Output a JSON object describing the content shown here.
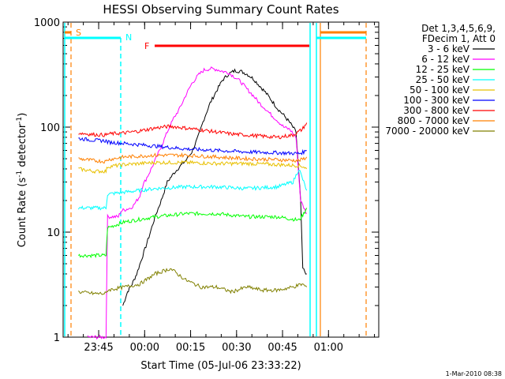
{
  "chart_data": {
    "type": "line",
    "title": "HESSI Observing Summary Count Rates",
    "xlabel": "Start Time (05-Jul-06 23:33:22)",
    "ylabel_main": "Count Rate (s",
    "ylabel_sup": "-1",
    "ylabel_mid": " detector",
    "ylabel_sup2": "-1",
    "ylabel_end": ")",
    "footer": "1-Mar-2010 08:38",
    "x_unit": "minutes after 23:33:22",
    "xlim": [
      0,
      103
    ],
    "ylim": [
      1,
      1000
    ],
    "yscale": "log",
    "x_ticks": [
      {
        "value": 11.6,
        "label": "23:45"
      },
      {
        "value": 26.6,
        "label": "00:00"
      },
      {
        "value": 41.6,
        "label": "00:15"
      },
      {
        "value": 56.6,
        "label": "00:30"
      },
      {
        "value": 71.6,
        "label": "00:45"
      },
      {
        "value": 86.6,
        "label": "01:00"
      }
    ],
    "y_ticks": [
      {
        "value": 1,
        "label": "1"
      },
      {
        "value": 10,
        "label": "10"
      },
      {
        "value": 100,
        "label": "100"
      },
      {
        "value": 1000,
        "label": "1000"
      }
    ],
    "legend_header": [
      "Det 1,3,4,5,6,9,",
      "FDecim 1, Att 0"
    ],
    "series": [
      {
        "name": "3 - 6 keV",
        "color": "#000000",
        "x": [
          19.5,
          21,
          22.5,
          24,
          26,
          28,
          30,
          32,
          34,
          36,
          38,
          40,
          42,
          44,
          46,
          48,
          50,
          52,
          54,
          56,
          58,
          60,
          62,
          64,
          66,
          68,
          70,
          72,
          74,
          76,
          77.5,
          78.2,
          79.5
        ],
        "y": [
          2,
          2.7,
          3.2,
          4,
          6,
          9,
          14,
          20,
          30,
          36,
          42,
          48,
          58,
          80,
          120,
          170,
          220,
          280,
          320,
          345,
          340,
          320,
          290,
          250,
          215,
          180,
          150,
          130,
          110,
          90,
          20,
          4.5,
          4
        ]
      },
      {
        "name": "6 - 12 keV",
        "color": "#ff00ff",
        "x": [
          8,
          11,
          14,
          14.5,
          18,
          19,
          22,
          23,
          25,
          26,
          28,
          30,
          32,
          34,
          36,
          38,
          40,
          42,
          44,
          46,
          48,
          50,
          52,
          54,
          56,
          58,
          60,
          62,
          64,
          66,
          68,
          70,
          72,
          74,
          76,
          77.5,
          78.2,
          79.5
        ],
        "y": [
          1,
          1,
          1,
          14,
          14,
          16,
          17,
          18,
          22,
          28,
          36,
          48,
          65,
          90,
          120,
          150,
          200,
          260,
          310,
          350,
          360,
          355,
          340,
          330,
          300,
          270,
          230,
          200,
          170,
          150,
          130,
          115,
          100,
          95,
          80,
          20,
          18,
          15
        ]
      },
      {
        "name": "12 - 25 keV",
        "color": "#00ff00",
        "x": [
          5,
          10,
          14,
          14.5,
          20,
          30,
          40,
          50,
          60,
          70,
          77,
          78.5,
          79.5
        ],
        "y": [
          6,
          6,
          6,
          11,
          12.5,
          14,
          15,
          15,
          14,
          14,
          13,
          15,
          17
        ]
      },
      {
        "name": "25 - 50 keV",
        "color": "#00ffff",
        "x": [
          5,
          10,
          14,
          14.5,
          20,
          30,
          40,
          50,
          60,
          70,
          75,
          77,
          78.5,
          79.5
        ],
        "y": [
          17,
          17,
          17,
          23,
          24,
          26,
          27,
          27,
          26,
          27,
          30,
          40,
          30,
          25
        ]
      },
      {
        "name": "50 - 100 keV",
        "color": "#e8c000",
        "x": [
          5,
          10,
          14,
          14.5,
          20,
          30,
          40,
          50,
          60,
          70,
          77,
          78.5,
          79.5
        ],
        "y": [
          40,
          38,
          38,
          42,
          44,
          46,
          46,
          45,
          45,
          44,
          43,
          42,
          40
        ]
      },
      {
        "name": "100 - 300 keV",
        "color": "#0000ff",
        "x": [
          5,
          10,
          14,
          14.5,
          20,
          30,
          40,
          50,
          60,
          70,
          77,
          78.5,
          79.5
        ],
        "y": [
          78,
          75,
          74,
          72,
          70,
          66,
          62,
          60,
          58,
          57,
          56,
          58,
          60
        ]
      },
      {
        "name": "300 - 800 keV",
        "color": "#ff0000",
        "x": [
          5,
          10,
          14,
          14.5,
          20,
          25,
          30,
          35,
          40,
          45,
          50,
          55,
          60,
          65,
          70,
          75,
          78,
          79.5
        ],
        "y": [
          88,
          85,
          84,
          86,
          88,
          92,
          98,
          102,
          98,
          94,
          90,
          86,
          84,
          82,
          80,
          84,
          95,
          110
        ]
      },
      {
        "name": "800 - 7000 keV",
        "color": "#ff8000",
        "x": [
          5,
          10,
          14,
          14.5,
          20,
          30,
          40,
          50,
          60,
          70,
          77,
          78.5,
          79.5
        ],
        "y": [
          50,
          48,
          47,
          49,
          52,
          54,
          54,
          52,
          50,
          49,
          48,
          50,
          52
        ]
      },
      {
        "name": "7000 - 20000 keV",
        "color": "#808000",
        "x": [
          5,
          10,
          14,
          14.5,
          20,
          25,
          30,
          35,
          40,
          45,
          50,
          55,
          60,
          65,
          70,
          75,
          78,
          79.5
        ],
        "y": [
          2.7,
          2.6,
          2.6,
          2.8,
          3,
          3.2,
          4,
          4.5,
          3.5,
          3,
          3,
          2.7,
          3,
          2.8,
          2.8,
          3,
          3.2,
          3
        ]
      }
    ],
    "attenuator_markers": [
      {
        "label": "S",
        "color": "#ff8000"
      },
      {
        "label": "N",
        "color": "#00ffff"
      },
      {
        "label": "F",
        "color": "#ff0000"
      }
    ]
  }
}
